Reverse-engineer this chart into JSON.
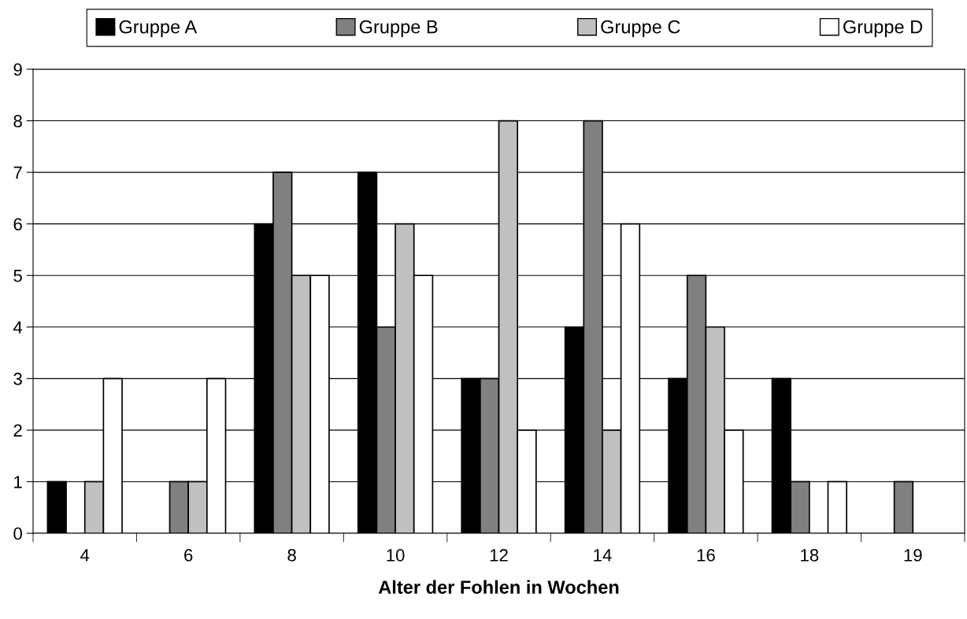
{
  "chart_data": {
    "type": "bar",
    "xlabel": "Alter der Fohlen in Wochen",
    "categories": [
      "4",
      "6",
      "8",
      "10",
      "12",
      "14",
      "16",
      "18",
      "19"
    ],
    "series": [
      {
        "name": "Gruppe A",
        "color": "#000000",
        "values": [
          1,
          0,
          6,
          7,
          3,
          4,
          3,
          3,
          0
        ]
      },
      {
        "name": "Gruppe B",
        "color": "#808080",
        "values": [
          0,
          1,
          7,
          4,
          3,
          8,
          5,
          1,
          1
        ]
      },
      {
        "name": "Gruppe C",
        "color": "#c0c0c0",
        "values": [
          1,
          1,
          5,
          6,
          8,
          2,
          4,
          0,
          0
        ]
      },
      {
        "name": "Gruppe D",
        "color": "#ffffff",
        "values": [
          3,
          3,
          5,
          5,
          2,
          6,
          2,
          1,
          0
        ]
      }
    ],
    "ylim": [
      0,
      9
    ],
    "yticks": [
      0,
      1,
      2,
      3,
      4,
      5,
      6,
      7,
      8,
      9
    ],
    "grid": "y",
    "legend": "top"
  }
}
